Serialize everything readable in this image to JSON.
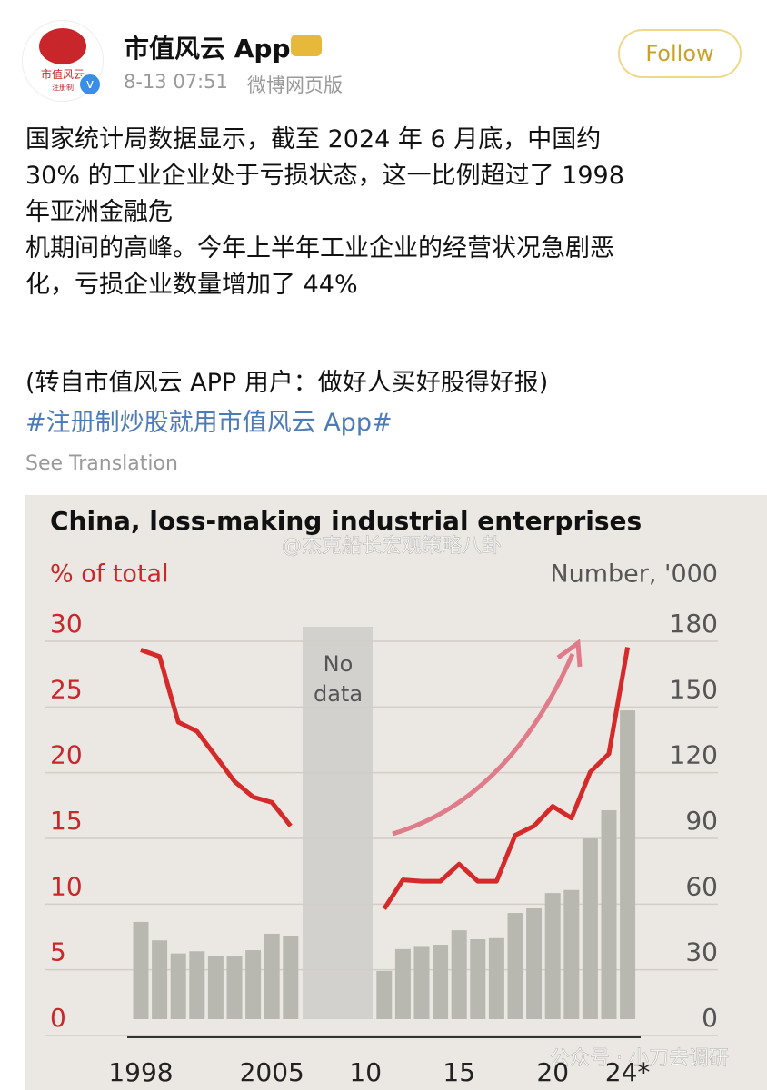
{
  "post": {
    "avatar_text": "市值风云",
    "avatar_sub": "注册制",
    "author": "市值风云 App",
    "time": "8-13 07:51",
    "source": "微博网页版",
    "follow": "Follow",
    "body": [
      "国家统计局数据显示，截至 2024 年 6 月底，中国约",
      "30% 的工业企业处于亏损状态，这一比例超过了 1998",
      "年亚洲金融危",
      "机期间的高峰。今年上半年工业企业的经营状况急剧恶",
      "化，亏损企业数量增加了 44%"
    ],
    "repost_note": "(转自市值风云 APP 用户：做好人买好股得好报)",
    "hashtag": "#注册制炒股就用市值风云 App#",
    "translate": "See Translation"
  },
  "chart_data": {
    "type": "combo",
    "title": "China, loss-making industrial enterprises",
    "ylabel": "% of total",
    "y2label": "Number, '000",
    "annotation": [
      "No",
      "data"
    ],
    "watermarks": [
      "@杰克船长宏观策略八卦",
      "公众号 · 小刀去调研"
    ],
    "categories": [
      "1998",
      null,
      null,
      null,
      null,
      null,
      null,
      "2005",
      null,
      null,
      null,
      null,
      "10",
      null,
      null,
      null,
      null,
      "15",
      null,
      null,
      null,
      null,
      "20",
      null,
      null,
      null,
      "24*"
    ],
    "series": [
      {
        "axis": "y2",
        "color": "#b9b8b0",
        "values": [
          44.4,
          36,
          30,
          31,
          29,
          28.6,
          31.5,
          39,
          38,
          null,
          null,
          null,
          null,
          22,
          32,
          33,
          34,
          40.6,
          36.5,
          37,
          48.5,
          50.6,
          57.6,
          59,
          82.5,
          95.4,
          141
        ]
      },
      {
        "axis": "y",
        "color": "#d42a2a",
        "values": [
          28.1,
          27.6,
          22.6,
          21.9,
          20,
          18.1,
          16.9,
          16.5,
          14.7,
          null,
          null,
          null,
          null,
          8.4,
          10.6,
          10.5,
          10.5,
          11.8,
          10.5,
          10.5,
          14,
          14.7,
          16.2,
          15.3,
          18.8,
          20.2,
          28.3
        ]
      }
    ],
    "ylim": [
      0,
      30
    ],
    "yticks": [
      0,
      5,
      10,
      15,
      20,
      25,
      30
    ],
    "y2lim": [
      0,
      180
    ],
    "y2ticks": [
      0,
      30,
      60,
      90,
      120,
      150,
      180
    ],
    "grid": true
  }
}
